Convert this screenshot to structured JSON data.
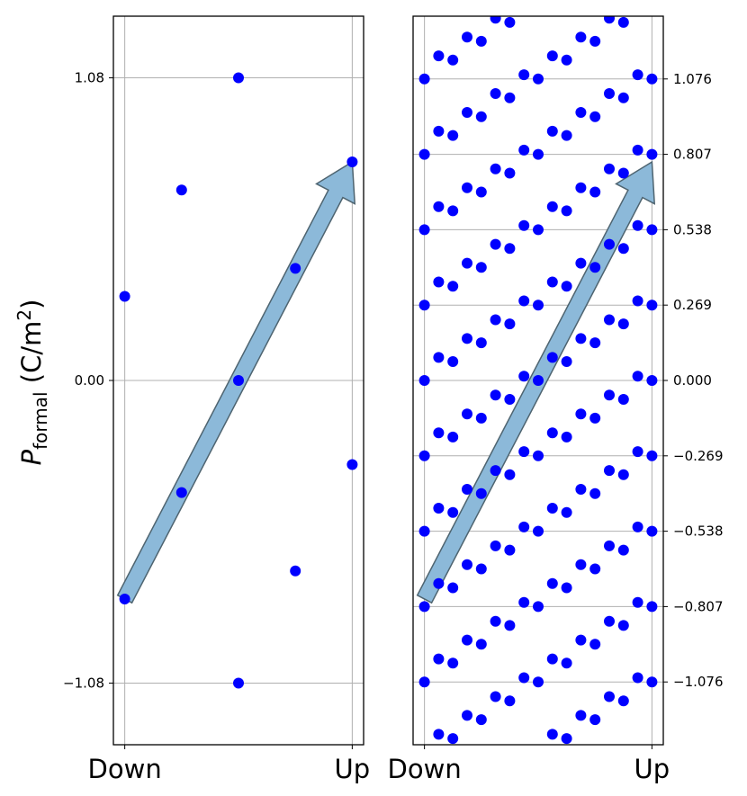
{
  "chart_data": [
    {
      "type": "scatter",
      "ylabel": {
        "symbol": "P",
        "subscript": "formal",
        "unit_open": " (C/m",
        "unit_power": "2",
        "unit_close": ")"
      },
      "x_categories": [
        "Down",
        "Up"
      ],
      "xlim": [
        -0.05,
        1.05
      ],
      "ylim": [
        -1.3,
        1.3
      ],
      "yticks": [
        -1.08,
        0.0,
        1.08
      ],
      "ytick_labels": [
        "−1.08",
        "0.00",
        "1.08"
      ],
      "ytick_side": "left",
      "grid": true,
      "marker_color": "#0000ff",
      "arrow": {
        "from": [
          0.0,
          -0.78
        ],
        "to": [
          1.0,
          0.78
        ],
        "color": "#8cb9d9"
      },
      "points": [
        [
          0.0,
          0.3
        ],
        [
          0.0,
          -0.78
        ],
        [
          0.25,
          0.68
        ],
        [
          0.25,
          -0.4
        ],
        [
          0.5,
          1.08
        ],
        [
          0.5,
          0.0
        ],
        [
          0.5,
          -1.08
        ],
        [
          0.75,
          0.4
        ],
        [
          0.75,
          -0.68
        ],
        [
          1.0,
          0.78
        ],
        [
          1.0,
          -0.3
        ]
      ]
    },
    {
      "type": "scatter",
      "x_categories": [
        "Down",
        "Up"
      ],
      "xlim": [
        -0.05,
        1.05
      ],
      "ylim": [
        -1.3,
        1.3
      ],
      "yticks": [
        -1.076,
        -0.807,
        -0.538,
        -0.269,
        0.0,
        0.269,
        0.538,
        0.807,
        1.076
      ],
      "ytick_labels": [
        "−1.076",
        "−0.807",
        "−0.538",
        "−0.269",
        "0.000",
        "0.269",
        "0.538",
        "0.807",
        "1.076"
      ],
      "ytick_side": "right",
      "grid": true,
      "marker_color": "#0000ff",
      "arrow": {
        "from": [
          0.0,
          -0.78
        ],
        "to": [
          1.0,
          0.78
        ],
        "color": "#8cb9d9"
      },
      "lattice": {
        "x_step": 0.0625,
        "y_step": 0.0975,
        "y_period": 0.269,
        "y_shift_per_column": 0.0487,
        "y_offset_col0": 0.0
      }
    }
  ]
}
